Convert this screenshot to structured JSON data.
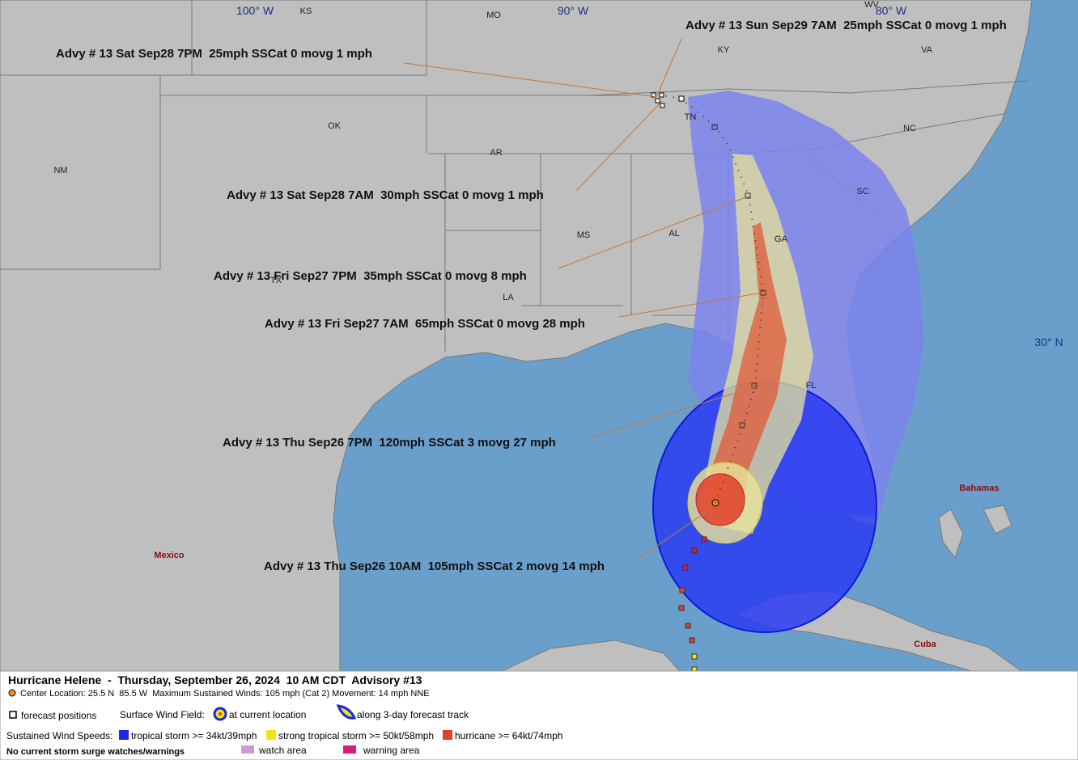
{
  "map": {
    "grid_labels": [
      "100° W",
      "90° W",
      "80° W",
      "30° N"
    ],
    "region_labels": [
      "KS",
      "MO",
      "WV",
      "KY",
      "VA",
      "OK",
      "TN",
      "NC",
      "AR",
      "NM",
      "SC",
      "MS",
      "AL",
      "GA",
      "TX",
      "LA",
      "FL"
    ],
    "country_labels": [
      "Mexico",
      "Bahamas",
      "Cuba"
    ]
  },
  "advisories": [
    "Advy # 13 Sun Sep29 7AM  25mph SSCat 0 movg 1 mph",
    "Advy # 13 Sat Sep28 7PM  25mph SSCat 0 movg 1 mph",
    "Advy # 13 Sat Sep28 7AM  30mph SSCat 0 movg 1 mph",
    "Advy # 13 Fri Sep27 7PM  35mph SSCat 0 movg 8 mph",
    "Advy # 13 Fri Sep27 7AM  65mph SSCat 0 movg 28 mph",
    "Advy # 13 Thu Sep26 7PM  120mph SSCat 3 movg 27 mph",
    "Advy # 13 Thu Sep26 10AM  105mph SSCat 2 movg 14 mph"
  ],
  "legend": {
    "title": "Hurricane Helene  -  Thursday, September 26, 2024  10 AM CDT  Advisory #13",
    "details": "Center Location: 25.5 N  85.5 W  Maximum Sustained Winds: 105 mph (Cat 2) Movement: 14 mph NNE",
    "forecast_positions": "forecast positions",
    "surface_wind_field": "Surface Wind Field:",
    "at_current_location": "at current location",
    "along_track": "along 3-day forecast track",
    "sustained_wind_speeds": "Sustained Wind Speeds:",
    "tropical_storm": "tropical storm >= 34kt/39mph",
    "strong_tropical_storm": "strong tropical storm >= 50kt/58mph",
    "hurricane": "hurricane >= 64kt/74mph",
    "no_surge": "No current storm surge watches/warnings",
    "watch_area": "watch area",
    "warning_area": "warning area"
  }
}
